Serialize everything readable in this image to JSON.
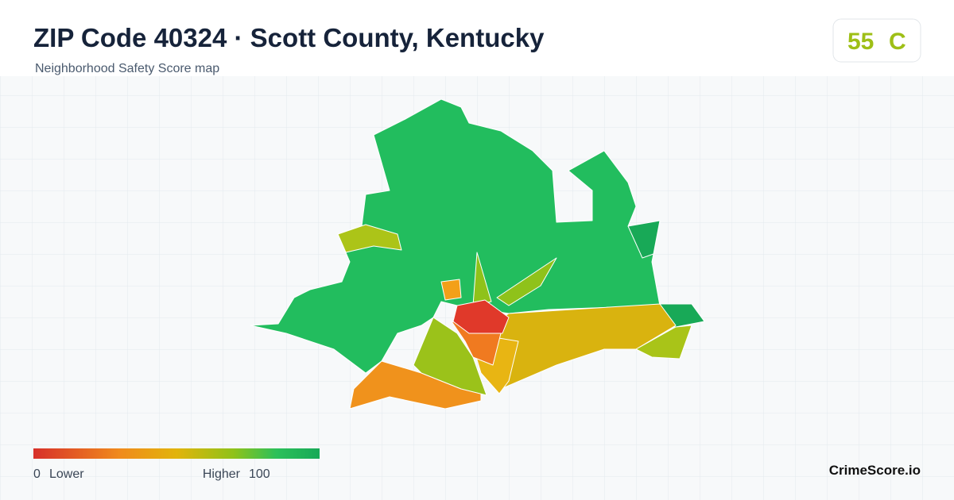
{
  "header": {
    "title": "ZIP Code 40324 · Scott County, Kentucky",
    "subtitle": "Neighborhood Safety Score map"
  },
  "score": {
    "value": 55,
    "grade": "C"
  },
  "legend": {
    "min": 0,
    "min_label": "Lower",
    "max_label": "Higher",
    "max": 100
  },
  "brand": "CrimeScore.io"
}
